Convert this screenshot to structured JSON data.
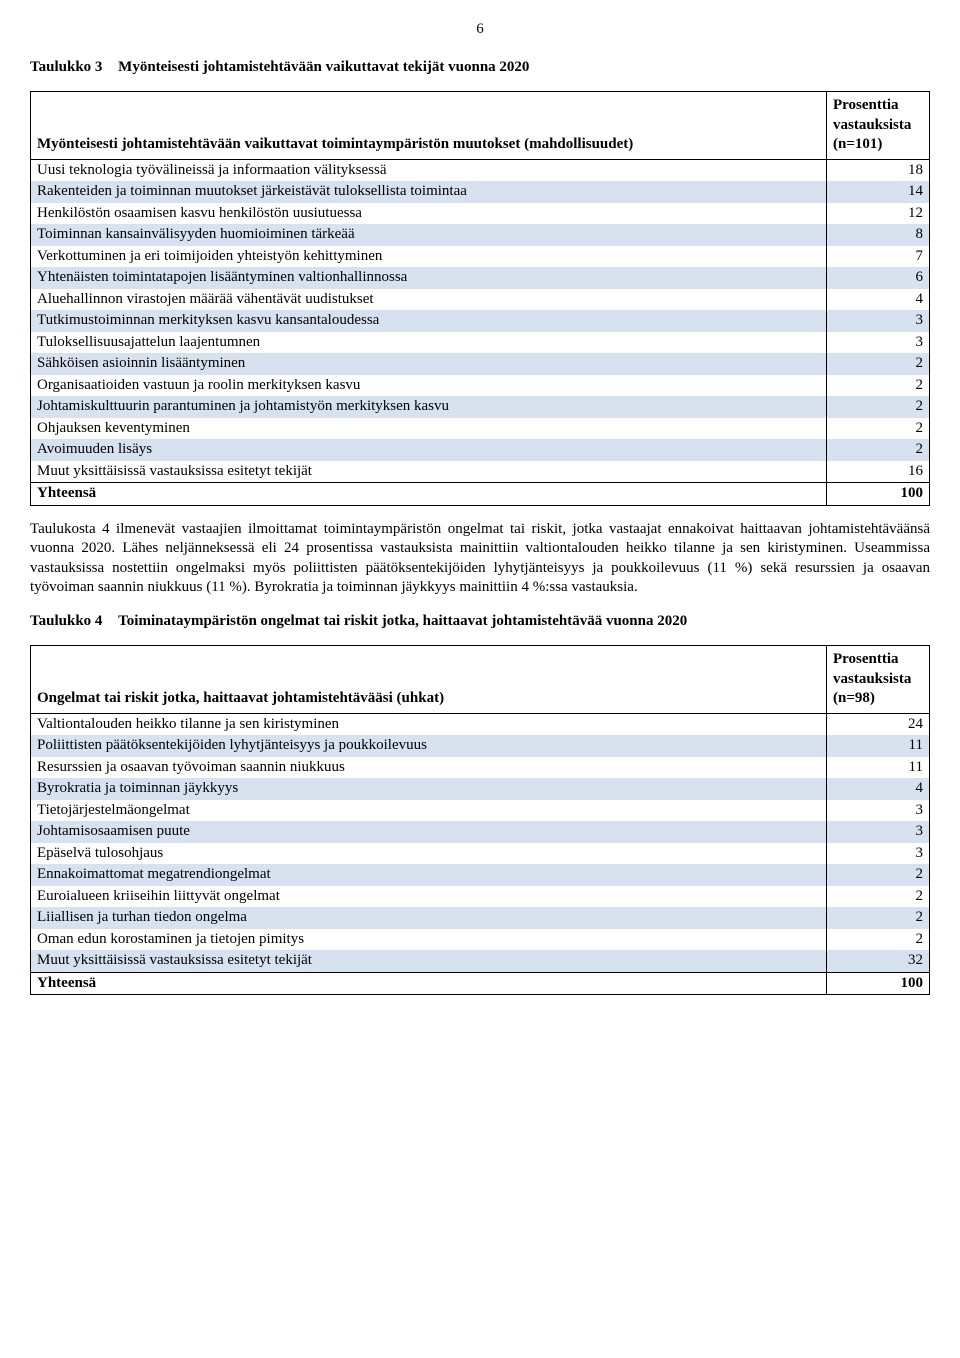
{
  "page_number": "6",
  "table3": {
    "caption_label": "Taulukko 3",
    "caption_text": "Myönteisesti johtamistehtävään vaikuttavat tekijät vuonna 2020",
    "header_left": "Myönteisesti johtamistehtävään vaikuttavat toimintaympäristön muutokset (mahdollisuudet)",
    "header_right": "Prosenttia vastauksista (n=101)",
    "rows": [
      {
        "label": "Uusi teknologia työvälineissä ja informaation välityksessä",
        "value": "18",
        "shade": false
      },
      {
        "label": "Rakenteiden ja toiminnan muutokset järkeistävät tuloksellista toimintaa",
        "value": "14",
        "shade": true
      },
      {
        "label": "Henkilöstön osaamisen kasvu henkilöstön uusiutuessa",
        "value": "12",
        "shade": false
      },
      {
        "label": "Toiminnan kansainvälisyyden huomioiminen tärkeää",
        "value": "8",
        "shade": true
      },
      {
        "label": "Verkottuminen ja eri toimijoiden yhteistyön kehittyminen",
        "value": "7",
        "shade": false
      },
      {
        "label": "Yhtenäisten toimintatapojen lisääntyminen valtionhallinnossa",
        "value": "6",
        "shade": true
      },
      {
        "label": "Aluehallinnon virastojen määrää vähentävät uudistukset",
        "value": "4",
        "shade": false
      },
      {
        "label": "Tutkimustoiminnan merkityksen kasvu kansantaloudessa",
        "value": "3",
        "shade": true
      },
      {
        "label": "Tuloksellisuusajattelun laajentumnen",
        "value": "3",
        "shade": false
      },
      {
        "label": "Sähköisen asioinnin lisääntyminen",
        "value": "2",
        "shade": true
      },
      {
        "label": "Organisaatioiden vastuun ja roolin merkityksen kasvu",
        "value": "2",
        "shade": false
      },
      {
        "label": "Johtamiskulttuurin parantuminen ja johtamistyön merkityksen kasvu",
        "value": "2",
        "shade": true
      },
      {
        "label": "Ohjauksen keventyminen",
        "value": "2",
        "shade": false
      },
      {
        "label": "Avoimuuden lisäys",
        "value": "2",
        "shade": true
      },
      {
        "label": "Muut yksittäisissä vastauksissa esitetyt tekijät",
        "value": "16",
        "shade": false
      }
    ],
    "total_label": "Yhteensä",
    "total_value": "100"
  },
  "para1": "Taulukosta 4 ilmenevät vastaajien ilmoittamat toimintaympäristön ongelmat tai riskit, jotka vastaajat ennakoivat haittaavan johtamistehtäväänsä vuonna 2020. Lähes neljänneksessä eli 24 prosentissa vastauksista mainittiin valtiontalouden heikko tilanne ja sen kiristyminen. Useammissa vastauksissa nostettiin ongelmaksi myös poliittisten päätöksentekijöiden lyhytjänteisyys ja poukkoilevuus (11 %) sekä resurssien ja osaavan työvoiman saannin niukkuus (11 %). Byrokratia ja toiminnan jäykkyys mainittiin 4 %:ssa vastauksia.",
  "table4": {
    "caption_label": "Taulukko 4",
    "caption_text": "Toiminataympäristön ongelmat tai riskit jotka, haittaavat johtamistehtävää vuonna 2020",
    "header_left": "Ongelmat tai riskit jotka, haittaavat johtamistehtävääsi (uhkat)",
    "header_right": "Prosenttia vastauksista (n=98)",
    "rows": [
      {
        "label": "Valtiontalouden heikko tilanne ja sen kiristyminen",
        "value": "24",
        "shade": false
      },
      {
        "label": "Poliittisten päätöksentekijöiden lyhytjänteisyys ja poukkoilevuus",
        "value": "11",
        "shade": true
      },
      {
        "label": "Resurssien ja osaavan työvoiman saannin niukkuus",
        "value": "11",
        "shade": false
      },
      {
        "label": "Byrokratia ja toiminnan jäykkyys",
        "value": "4",
        "shade": true
      },
      {
        "label": "Tietojärjestelmäongelmat",
        "value": "3",
        "shade": false
      },
      {
        "label": "Johtamisosaamisen puute",
        "value": "3",
        "shade": true
      },
      {
        "label": "Epäselvä tulosohjaus",
        "value": "3",
        "shade": false
      },
      {
        "label": "Ennakoimattomat megatrendiongelmat",
        "value": "2",
        "shade": true
      },
      {
        "label": "Euroialueen kriiseihin liittyvät ongelmat",
        "value": "2",
        "shade": false
      },
      {
        "label": "Liiallisen ja turhan tiedon ongelma",
        "value": "2",
        "shade": true
      },
      {
        "label": "Oman edun korostaminen ja tietojen pimitys",
        "value": "2",
        "shade": false
      },
      {
        "label": "Muut yksittäisissä vastauksissa esitetyt tekijät",
        "value": "32",
        "shade": true
      }
    ],
    "total_label": "Yhteensä",
    "total_value": "100"
  }
}
